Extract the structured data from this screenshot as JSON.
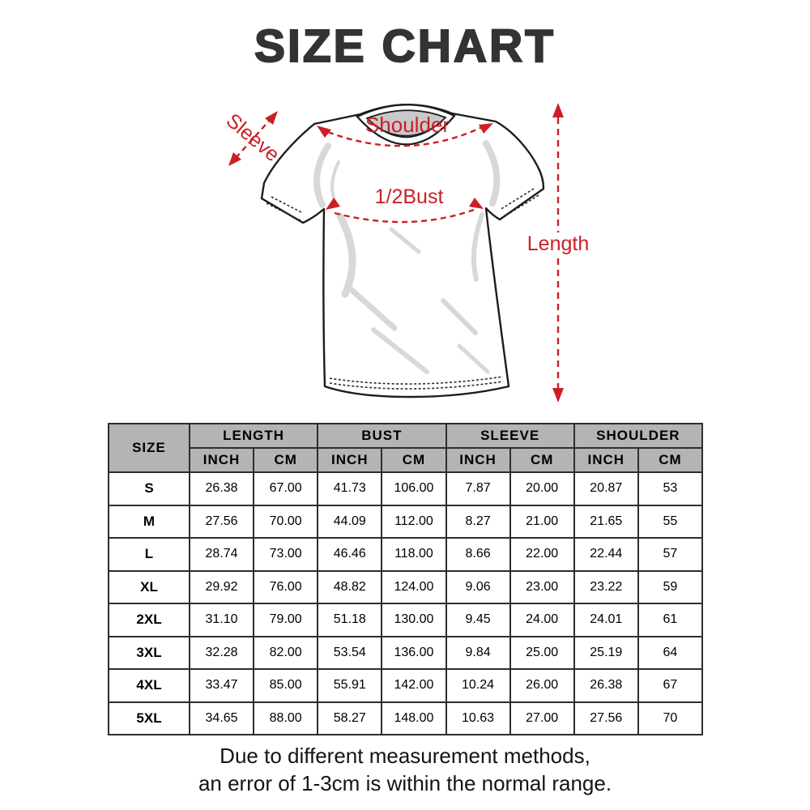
{
  "title": "SIZE CHART",
  "colors": {
    "accent_red": "#cb1f26",
    "header_gray": "#b4b4b4",
    "border_dark": "#2d2d2d",
    "title_color": "#333333"
  },
  "diagram": {
    "sleeve_label": "Sleeve",
    "shoulder_label": "Shoulder",
    "half_bust_label": "1/2Bust",
    "length_label": "Length"
  },
  "chart_data": {
    "type": "table",
    "title": "SIZE CHART",
    "corner_header": "SIZE",
    "column_groups": [
      {
        "label": "LENGTH",
        "sub": [
          "INCH",
          "CM"
        ]
      },
      {
        "label": "BUST",
        "sub": [
          "INCH",
          "CM"
        ]
      },
      {
        "label": "SLEEVE",
        "sub": [
          "INCH",
          "CM"
        ]
      },
      {
        "label": "SHOULDER",
        "sub": [
          "INCH",
          "CM"
        ]
      }
    ],
    "rows": [
      {
        "size": "S",
        "values": [
          "26.38",
          "67.00",
          "41.73",
          "106.00",
          "7.87",
          "20.00",
          "20.87",
          "53"
        ]
      },
      {
        "size": "M",
        "values": [
          "27.56",
          "70.00",
          "44.09",
          "112.00",
          "8.27",
          "21.00",
          "21.65",
          "55"
        ]
      },
      {
        "size": "L",
        "values": [
          "28.74",
          "73.00",
          "46.46",
          "118.00",
          "8.66",
          "22.00",
          "22.44",
          "57"
        ]
      },
      {
        "size": "XL",
        "values": [
          "29.92",
          "76.00",
          "48.82",
          "124.00",
          "9.06",
          "23.00",
          "23.22",
          "59"
        ]
      },
      {
        "size": "2XL",
        "values": [
          "31.10",
          "79.00",
          "51.18",
          "130.00",
          "9.45",
          "24.00",
          "24.01",
          "61"
        ]
      },
      {
        "size": "3XL",
        "values": [
          "32.28",
          "82.00",
          "53.54",
          "136.00",
          "9.84",
          "25.00",
          "25.19",
          "64"
        ]
      },
      {
        "size": "4XL",
        "values": [
          "33.47",
          "85.00",
          "55.91",
          "142.00",
          "10.24",
          "26.00",
          "26.38",
          "67"
        ]
      },
      {
        "size": "5XL",
        "values": [
          "34.65",
          "88.00",
          "58.27",
          "148.00",
          "10.63",
          "27.00",
          "27.56",
          "70"
        ]
      }
    ]
  },
  "footer": {
    "line1": "Due to different measurement methods,",
    "line2": "an error of 1-3cm is within the normal range."
  }
}
